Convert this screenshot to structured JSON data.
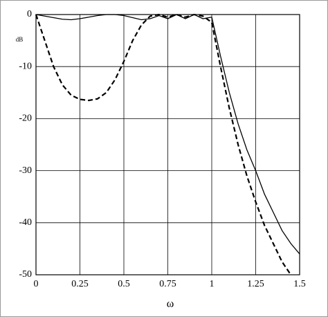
{
  "chart_data": {
    "type": "line",
    "x_label": "ω",
    "y_label": "dB",
    "x": [
      0,
      0.05,
      0.1,
      0.15,
      0.2,
      0.25,
      0.3,
      0.35,
      0.4,
      0.45,
      0.5,
      0.55,
      0.6,
      0.65,
      0.7,
      0.75,
      0.8,
      0.85,
      0.9,
      0.95,
      1.0,
      1.05,
      1.1,
      1.15,
      1.2,
      1.25,
      1.3,
      1.35,
      1.4,
      1.45,
      1.5
    ],
    "series": [
      {
        "color": "#000000",
        "line_style": "solid",
        "values": [
          0,
          -0.3,
          -0.6,
          -0.9,
          -1,
          -0.8,
          -0.5,
          -0.2,
          0,
          0,
          -0.2,
          -0.6,
          -1,
          -0.8,
          -0.2,
          -0.8,
          0,
          -0.8,
          0,
          -0.8,
          -0.5,
          -8,
          -15,
          -21,
          -26,
          -30,
          -34.5,
          -38,
          -41.5,
          -44,
          -46
        ]
      },
      {
        "color": "#000000",
        "line_style": "dashed",
        "values": [
          0,
          -5,
          -10,
          -13.5,
          -15.5,
          -16.3,
          -16.5,
          -16.2,
          -15,
          -12.5,
          -9,
          -5,
          -2,
          -0.3,
          0,
          -0.5,
          0,
          -0.5,
          0,
          -0.3,
          -1.5,
          -10,
          -18,
          -25,
          -31,
          -36,
          -40.5,
          -44,
          -47.5,
          -50,
          null
        ]
      }
    ],
    "xlim": [
      0,
      1.5
    ],
    "xticks": [
      0,
      0.25,
      0.5,
      0.75,
      1,
      1.25,
      1.5
    ],
    "ylim": [
      -50,
      0
    ],
    "yticks": [
      0,
      -10,
      -20,
      -30,
      -40,
      -50
    ],
    "grid": true
  }
}
